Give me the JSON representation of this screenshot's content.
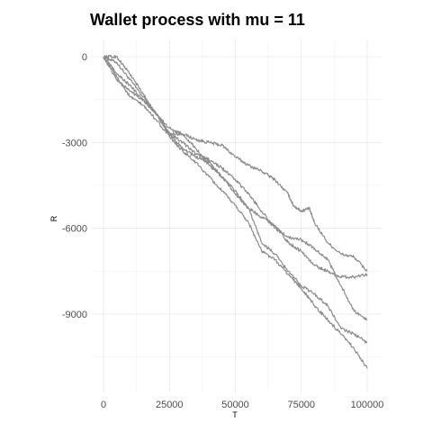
{
  "chart_data": {
    "type": "line",
    "title": "Wallet process with mu =  11",
    "xlabel": "T",
    "ylabel": "R",
    "xlim": [
      0,
      100000
    ],
    "ylim": [
      -11800,
      500
    ],
    "x_ticks": [
      0,
      25000,
      50000,
      75000,
      100000
    ],
    "x_tick_labels": [
      "0",
      "25000",
      "50000",
      "75000",
      "100000"
    ],
    "y_ticks": [
      0,
      -3000,
      -6000,
      -9000
    ],
    "y_tick_labels": [
      "0",
      "-3000",
      "-6000",
      "-9000"
    ],
    "grid": true,
    "legend": "none",
    "line_color": "#8c8c8c",
    "series": [
      {
        "x": [
          0,
          5000,
          10000,
          15000,
          20000,
          25000,
          30000,
          35000,
          40000,
          45000,
          50000,
          55000,
          60000,
          65000,
          70000,
          72000,
          75000,
          78000,
          80000,
          85000,
          90000,
          95000,
          100000
        ],
        "y": [
          0,
          -200,
          -800,
          -1400,
          -2000,
          -2500,
          -2700,
          -2900,
          -3000,
          -3100,
          -3500,
          -3800,
          -4000,
          -4300,
          -4800,
          -5200,
          -5400,
          -5300,
          -5800,
          -6500,
          -6900,
          -7000,
          -7500
        ]
      },
      {
        "x": [
          0,
          5000,
          10000,
          15000,
          20000,
          25000,
          30000,
          35000,
          40000,
          45000,
          50000,
          55000,
          60000,
          65000,
          70000,
          75000,
          80000,
          85000,
          90000,
          95000,
          100000
        ],
        "y": [
          0,
          0,
          -600,
          -1300,
          -2000,
          -2700,
          -2700,
          -3200,
          -3800,
          -4200,
          -4700,
          -5300,
          -5600,
          -5900,
          -6500,
          -6800,
          -7300,
          -7500,
          -7700,
          -7700,
          -7600
        ]
      },
      {
        "x": [
          0,
          5000,
          10000,
          15000,
          20000,
          25000,
          30000,
          35000,
          40000,
          45000,
          50000,
          55000,
          60000,
          65000,
          70000,
          75000,
          80000,
          85000,
          90000,
          95000,
          100000
        ],
        "y": [
          0,
          -800,
          -1200,
          -1500,
          -2000,
          -2700,
          -3200,
          -3500,
          -3700,
          -4200,
          -4800,
          -5300,
          -6500,
          -6900,
          -7500,
          -8000,
          -8300,
          -8700,
          -9500,
          -9700,
          -10000
        ]
      },
      {
        "x": [
          0,
          5000,
          10000,
          15000,
          20000,
          25000,
          30000,
          35000,
          40000,
          45000,
          50000,
          55000,
          60000,
          65000,
          70000,
          75000,
          80000,
          85000,
          90000,
          95000,
          100000
        ],
        "y": [
          0,
          -700,
          -1400,
          -1700,
          -2200,
          -2800,
          -3300,
          -3700,
          -4200,
          -4700,
          -5200,
          -5800,
          -6800,
          -7100,
          -7600,
          -8100,
          -8700,
          -9200,
          -9700,
          -10200,
          -10900
        ]
      },
      {
        "x": [
          0,
          5000,
          10000,
          15000,
          20000,
          25000,
          30000,
          35000,
          40000,
          45000,
          50000,
          55000,
          60000,
          65000,
          70000,
          75000,
          80000,
          85000,
          90000,
          95000,
          100000
        ],
        "y": [
          0,
          -600,
          -1000,
          -1500,
          -2000,
          -2700,
          -3000,
          -3400,
          -3600,
          -3900,
          -4300,
          -4800,
          -5400,
          -6000,
          -6300,
          -6400,
          -6700,
          -7100,
          -8000,
          -8900,
          -9200
        ]
      }
    ]
  }
}
